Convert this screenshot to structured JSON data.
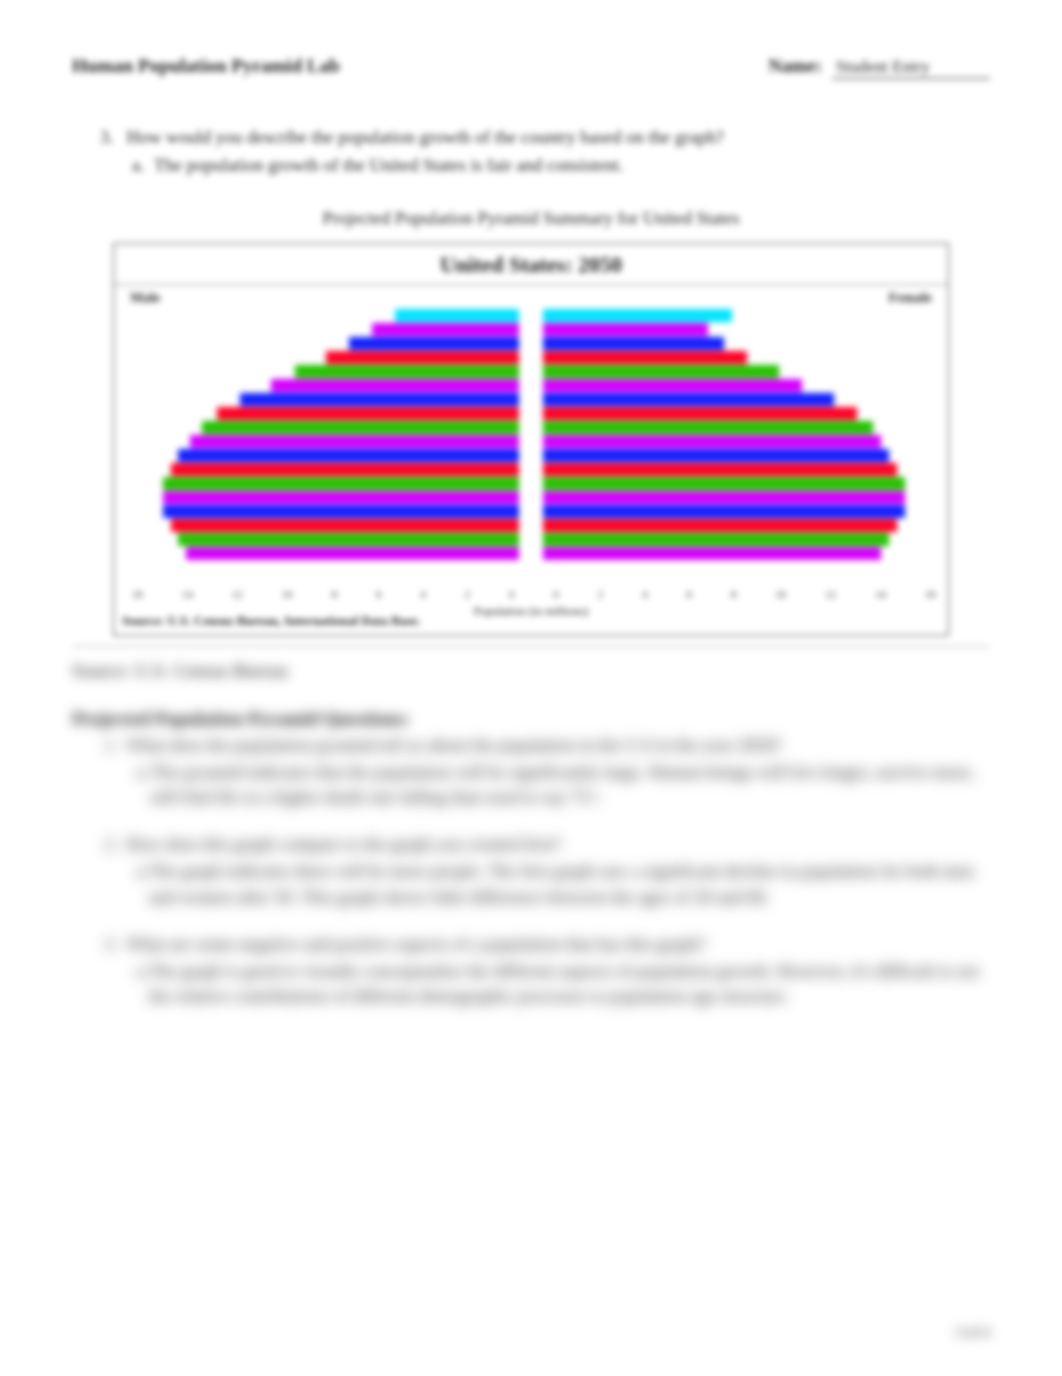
{
  "header": {
    "doc_title": "Human Population Pyramid Lab",
    "name_label": "Name:",
    "name_value": "Student Entry"
  },
  "question3": {
    "number": "3.",
    "text": "How would you describe the population growth of the country based on the graph?",
    "answer_letter": "a.",
    "answer_text": "The population growth of the United States is fair and consistent."
  },
  "chart": {
    "caption": "Projected Population Pyramid Summary for United States",
    "title": "United States: 2050",
    "male_label": "Male",
    "female_label": "Female",
    "axis_label": "Population (in millions)",
    "inner_source": "Source: U.S. Census Bureau, International Data Base.",
    "colors_cycle": [
      "#00e5ff",
      "#d400ff",
      "#1020ff",
      "#ff0026",
      "#23c400",
      "#d400ff",
      "#1020ff",
      "#ff0026",
      "#23c400",
      "#d400ff",
      "#1020ff",
      "#ff0026",
      "#23c400",
      "#d400ff",
      "#1020ff",
      "#ff0026",
      "#23c400",
      "#d400ff"
    ],
    "left_widths": [
      32,
      38,
      44,
      50,
      58,
      64,
      72,
      78,
      82,
      85,
      88,
      90,
      92,
      92,
      92,
      90,
      88,
      86
    ],
    "right_widths": [
      48,
      42,
      46,
      52,
      60,
      66,
      74,
      80,
      84,
      86,
      88,
      90,
      92,
      92,
      92,
      90,
      88,
      86
    ],
    "axis_ticks": [
      "16",
      "14",
      "12",
      "10",
      "8",
      "6",
      "4",
      "2",
      "0",
      "0",
      "2",
      "4",
      "6",
      "8",
      "10",
      "12",
      "14",
      "16"
    ]
  },
  "outer_source": "Source: U.S. Census Bureau",
  "section2_heading": "Projected Population Pyramid Questions:",
  "q1": {
    "num": "1.",
    "text": "What does the population pyramid tell us about the population in the U.S in the year 2050?",
    "a_letter": "a.",
    "a_text": "The pyramid indicates that the population will be significantly large. Human beings will live longer, survive more, still find life at a higher death rate falling than used to say 75+."
  },
  "q2": {
    "num": "2.",
    "text": "How does this graph compare to the graph you created first?",
    "a_letter": "a.",
    "a_text": "The graph indicates there will be more people. The first graph saw a significant decline in population for both men and women after 50. This graph shows little difference between the ages of 20 and 60."
  },
  "q3b": {
    "num": "3.",
    "text": "What are some negative and positive aspects of a population that has this graph?",
    "a_letter": "a.",
    "a_text": "The graph is good to visually conceptualize the different aspects of population growth. However, it's difficult to see the relative contributions of different demographic processes to population age-structure."
  },
  "footer": "3 of 4"
}
